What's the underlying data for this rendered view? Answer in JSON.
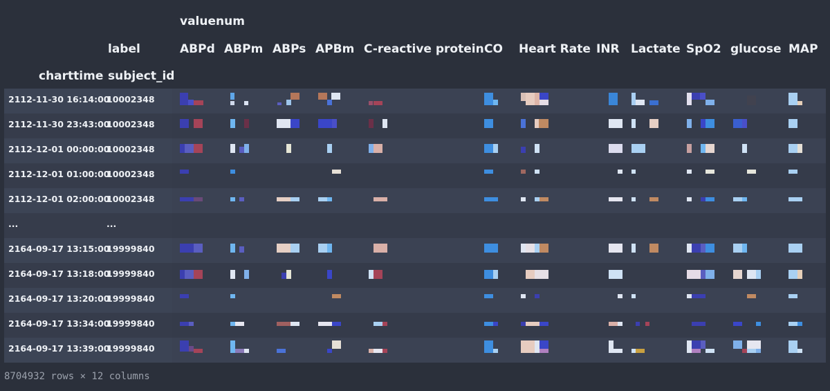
{
  "table": {
    "column_group": "valuenum",
    "columns_label": "label",
    "index_names": [
      "charttime",
      "subject_id"
    ],
    "columns": [
      "ABPd",
      "ABPm",
      "ABPs",
      "APBm",
      "C-reactive protein",
      "CO",
      "Heart Rate",
      "INR",
      "Lactate",
      "SpO2",
      "glucose",
      "MAP"
    ],
    "rows": [
      {
        "charttime": "2112-11-30 16:14:00",
        "subject_id": "10002348"
      },
      {
        "charttime": "2112-11-30 23:43:00",
        "subject_id": "10002348"
      },
      {
        "charttime": "2112-12-01 00:00:00",
        "subject_id": "10002348"
      },
      {
        "charttime": "2112-12-01 01:00:00",
        "subject_id": "10002348"
      },
      {
        "charttime": "2112-12-01 02:00:00",
        "subject_id": "10002348"
      },
      {
        "charttime": "...",
        "subject_id": "..."
      },
      {
        "charttime": "2164-09-17 13:15:00",
        "subject_id": "19999840"
      },
      {
        "charttime": "2164-09-17 13:18:00",
        "subject_id": "19999840"
      },
      {
        "charttime": "2164-09-17 13:20:00",
        "subject_id": "19999840"
      },
      {
        "charttime": "2164-09-17 13:34:00",
        "subject_id": "19999840"
      },
      {
        "charttime": "2164-09-17 13:39:00",
        "subject_id": "19999840"
      }
    ]
  },
  "footer": {
    "shape_text": "8704932 rows × 12 columns"
  },
  "colors": {
    "page_bg": "#2b303b",
    "row_odd": "#3b4253",
    "row_even": "#353b4a",
    "text": "#eef1f5",
    "footer_text": "#9aa0ab"
  }
}
